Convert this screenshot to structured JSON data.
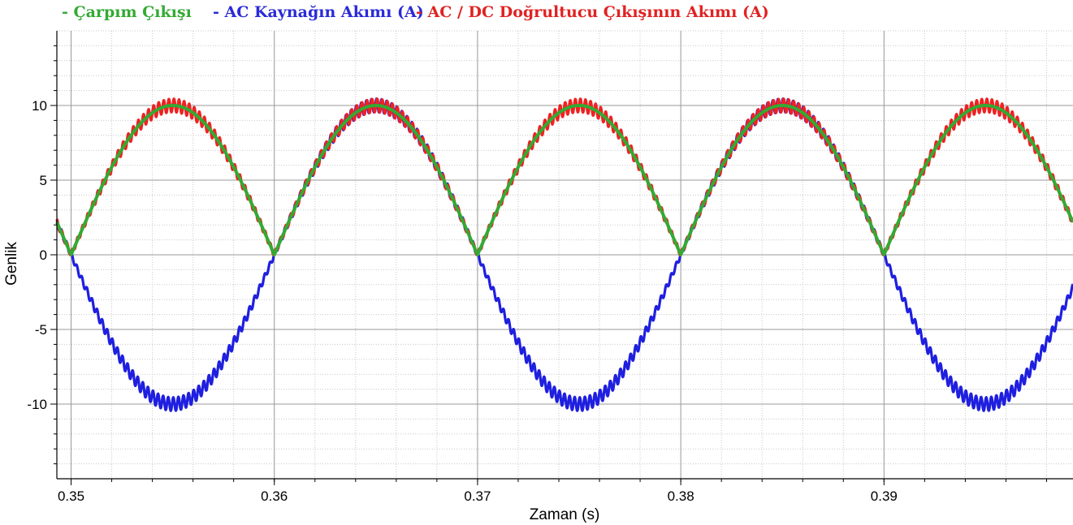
{
  "chart_data": {
    "type": "line",
    "title": "",
    "xlabel": "Zaman (s)",
    "ylabel": "Genlik",
    "xlim": [
      0.3493,
      0.3993
    ],
    "ylim": [
      -15,
      15
    ],
    "x_ticks": [
      0.35,
      0.36,
      0.37,
      0.38,
      0.39
    ],
    "x_tick_labels": [
      "0.35",
      "0.36",
      "0.37",
      "0.38",
      "0.39"
    ],
    "y_ticks": [
      -10,
      -5,
      0,
      5,
      10
    ],
    "y_tick_labels": [
      "-10",
      "-5",
      "0",
      "5",
      "10"
    ],
    "grid": true,
    "legend_position": "top-left",
    "frequency_hz": 50,
    "series": [
      {
        "name": "- Çarpım Çıkışı",
        "color": "#33aa33",
        "shape": "rectified-sine",
        "amplitude": 10,
        "ripple": 0
      },
      {
        "name": "- AC Kaynağın Akımı (A)",
        "color": "#1f1fe0",
        "shape": "sine",
        "amplitude": 10,
        "ripple": 0.45
      },
      {
        "name": "- AC / DC Doğrultucu Çıkışının Akımı (A)",
        "color": "#ee2222",
        "shape": "rectified-sine",
        "amplitude": 10,
        "ripple": 0.45
      }
    ]
  }
}
